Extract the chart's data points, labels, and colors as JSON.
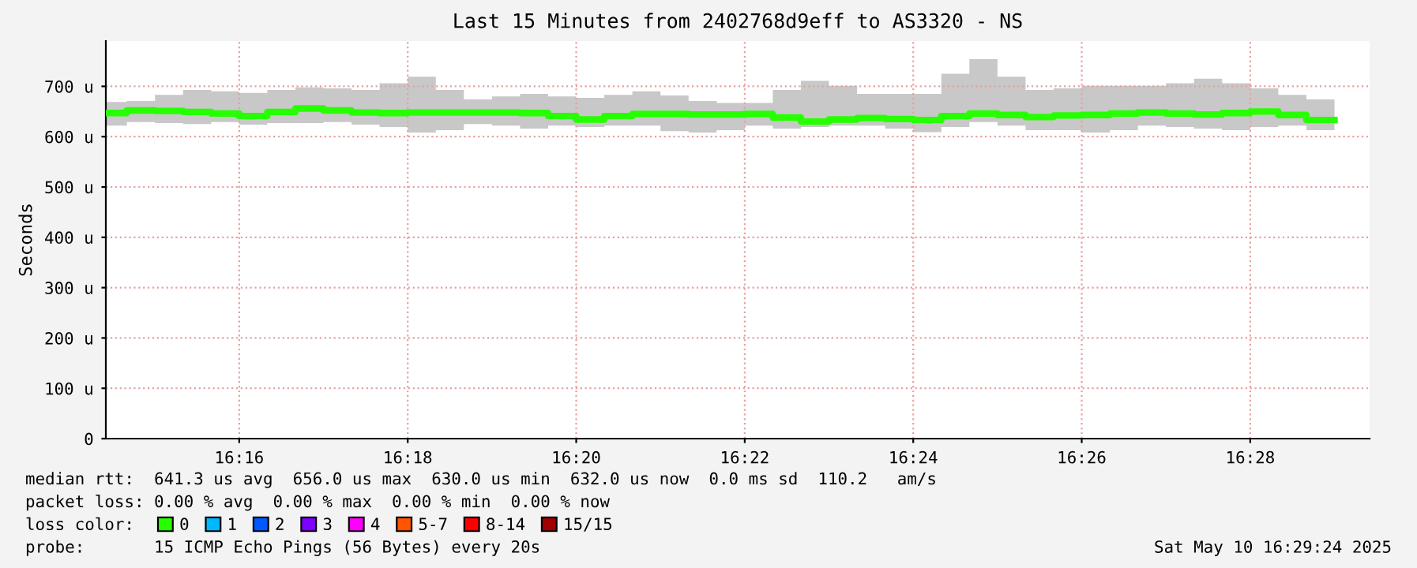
{
  "chart_data": {
    "type": "step",
    "title": "Last 15 Minutes from 2402768d9eff to AS3320 - NS",
    "ylabel": "Seconds",
    "x": [
      16.24028,
      16.24444,
      16.25,
      16.25556,
      16.26111,
      16.26667,
      16.27222,
      16.27778,
      16.28333,
      16.28889,
      16.29444,
      16.3,
      16.30556,
      16.31111,
      16.31667,
      16.32222,
      16.32778,
      16.33333,
      16.33889,
      16.34444,
      16.35,
      16.35556,
      16.36111,
      16.36667,
      16.37222,
      16.37778,
      16.38333,
      16.38889,
      16.39444,
      16.4,
      16.40556,
      16.41111,
      16.41667,
      16.42222,
      16.42778,
      16.43333,
      16.43889,
      16.44444,
      16.45,
      16.45556,
      16.46111,
      16.46667,
      16.47222,
      16.47778,
      16.48333
    ],
    "series": [
      {
        "name": "0",
        "color": "#26ff00",
        "values": [
          647,
          652,
          651,
          649,
          646,
          641,
          649,
          656,
          652,
          648,
          647,
          648,
          648,
          648,
          648,
          647,
          641,
          634,
          641,
          645,
          645,
          644,
          644,
          645,
          638,
          630,
          634,
          637,
          635,
          633,
          641,
          646,
          643,
          639,
          642,
          643,
          646,
          648,
          646,
          644,
          647,
          650,
          643,
          633,
          633
        ],
        "upper": [
          669,
          671,
          683,
          693,
          690,
          687,
          693,
          698,
          696,
          693,
          706,
          719,
          693,
          674,
          680,
          685,
          680,
          677,
          683,
          690,
          682,
          671,
          667,
          667,
          693,
          711,
          701,
          685,
          685,
          685,
          725,
          754,
          719,
          693,
          696,
          701,
          701,
          701,
          706,
          715,
          706,
          696,
          683,
          674,
          674
        ],
        "lower": [
          622,
          629,
          627,
          625,
          629,
          624,
          627,
          627,
          629,
          624,
          619,
          608,
          613,
          625,
          622,
          616,
          622,
          619,
          622,
          622,
          611,
          608,
          613,
          622,
          616,
          619,
          622,
          622,
          616,
          609,
          619,
          629,
          622,
          613,
          613,
          608,
          613,
          622,
          619,
          616,
          613,
          619,
          622,
          613,
          613
        ]
      },
      {
        "name": "1",
        "color": "#00b8ff",
        "values": [
          null,
          null,
          null,
          null,
          null,
          null,
          null,
          null,
          null,
          null,
          null,
          null,
          null,
          null,
          null,
          null,
          null,
          null,
          null,
          null,
          null,
          null,
          null,
          null,
          null,
          null,
          null,
          null,
          null,
          null,
          null,
          null,
          null,
          null,
          null,
          null,
          null,
          null,
          null,
          null,
          null,
          null,
          null,
          null,
          null
        ]
      },
      {
        "name": "2",
        "color": "#0059ff",
        "values": [
          null,
          null,
          null,
          null,
          null,
          null,
          null,
          null,
          null,
          null,
          null,
          null,
          null,
          null,
          null,
          null,
          null,
          null,
          null,
          null,
          null,
          null,
          null,
          null,
          null,
          null,
          null,
          null,
          null,
          null,
          null,
          null,
          null,
          null,
          null,
          null,
          null,
          null,
          null,
          null,
          null,
          null,
          null,
          null,
          null
        ]
      },
      {
        "name": "3",
        "color": "#7e00ff",
        "values": [
          null,
          null,
          null,
          null,
          null,
          null,
          null,
          null,
          null,
          null,
          null,
          null,
          null,
          null,
          null,
          null,
          null,
          null,
          null,
          null,
          null,
          null,
          null,
          null,
          null,
          null,
          null,
          null,
          null,
          null,
          null,
          null,
          null,
          null,
          null,
          null,
          null,
          null,
          null,
          null,
          null,
          null,
          null,
          null,
          null
        ]
      },
      {
        "name": "4",
        "color": "#ff00ff",
        "values": [
          null,
          null,
          null,
          null,
          null,
          null,
          null,
          null,
          null,
          null,
          null,
          null,
          null,
          null,
          null,
          null,
          null,
          null,
          null,
          null,
          null,
          null,
          null,
          null,
          null,
          null,
          null,
          null,
          null,
          null,
          null,
          null,
          null,
          null,
          null,
          null,
          null,
          null,
          null,
          null,
          null,
          null,
          null,
          null,
          null
        ]
      },
      {
        "name": "5-7",
        "color": "#ff5500",
        "values": [
          null,
          null,
          null,
          null,
          null,
          null,
          null,
          null,
          null,
          null,
          null,
          null,
          null,
          null,
          null,
          null,
          null,
          null,
          null,
          null,
          null,
          null,
          null,
          null,
          null,
          null,
          null,
          null,
          null,
          null,
          null,
          null,
          null,
          null,
          null,
          null,
          null,
          null,
          null,
          null,
          null,
          null,
          null,
          null,
          null
        ]
      },
      {
        "name": "8-14",
        "color": "#ff0000",
        "values": [
          null,
          null,
          null,
          null,
          null,
          null,
          null,
          null,
          null,
          null,
          null,
          null,
          null,
          null,
          null,
          null,
          null,
          null,
          null,
          null,
          null,
          null,
          null,
          null,
          null,
          null,
          null,
          null,
          null,
          null,
          null,
          null,
          null,
          null,
          null,
          null,
          null,
          null,
          null,
          null,
          null,
          null,
          null,
          null,
          null
        ]
      },
      {
        "name": "15/15",
        "color": "#a10000",
        "values": [
          null,
          null,
          null,
          null,
          null,
          null,
          null,
          null,
          null,
          null,
          null,
          null,
          null,
          null,
          null,
          null,
          null,
          null,
          null,
          null,
          null,
          null,
          null,
          null,
          null,
          null,
          null,
          null,
          null,
          null,
          null,
          null,
          null,
          null,
          null,
          null,
          null,
          null,
          null,
          null,
          null,
          null,
          null,
          null,
          null
        ]
      }
    ],
    "xlim": [
      16.24028,
      16.49028
    ],
    "xticks": [
      {
        "value": 16.26667,
        "label": "16:16"
      },
      {
        "value": 16.3,
        "label": "16:18"
      },
      {
        "value": 16.33333,
        "label": "16:20"
      },
      {
        "value": 16.36667,
        "label": "16:22"
      },
      {
        "value": 16.4,
        "label": "16:24"
      },
      {
        "value": 16.43333,
        "label": "16:26"
      },
      {
        "value": 16.46667,
        "label": "16:28"
      }
    ],
    "ylim": [
      0,
      790
    ],
    "yticks": [
      0,
      {
        "value": 100,
        "label": "100 u"
      },
      {
        "value": 200,
        "label": "200 u"
      },
      {
        "value": 300,
        "label": "300 u"
      },
      {
        "value": 400,
        "label": "400 u"
      },
      {
        "value": 500,
        "label": "500 u"
      },
      {
        "value": 600,
        "label": "600 u"
      },
      {
        "value": 700,
        "label": "700 u"
      }
    ],
    "grid": true,
    "legend": "bottom",
    "annotations": [
      "median rtt:  641.3 us avg  656.0 us max  630.0 us min  632.0 us now  0.0 ms sd  110.2   am/s",
      "packet loss: 0.00 % avg  0.00 % max  0.00 % min  0.00 % now",
      "loss color:",
      "probe:       15 ICMP Echo Pings (56 Bytes) every 20s",
      "Sat May 10 16:29:24 2025"
    ]
  }
}
